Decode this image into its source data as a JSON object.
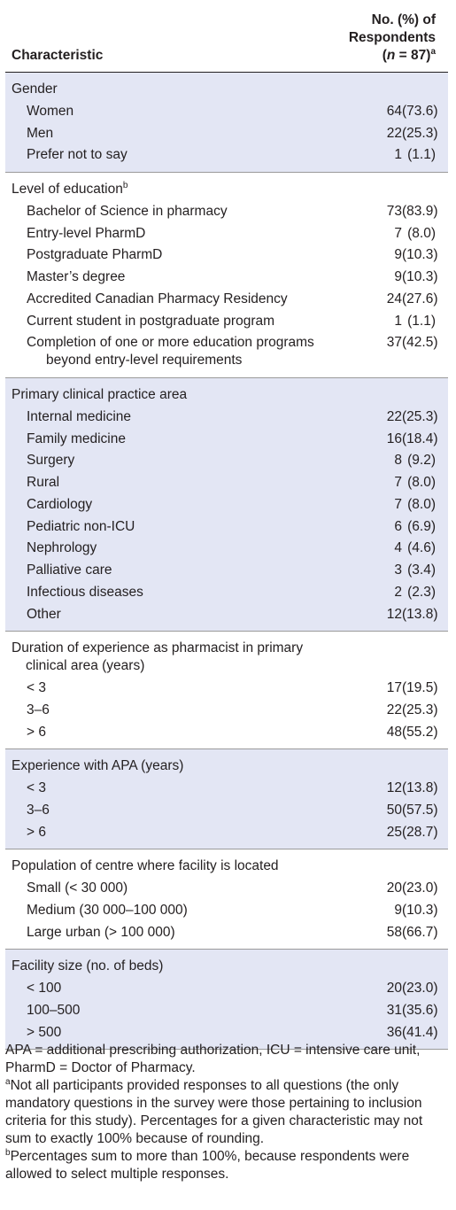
{
  "header": {
    "characteristic_label": "Characteristic",
    "col_line1": "No. (%) of",
    "col_line2": "Respondents",
    "col_n_italic": "n",
    "col_n_rest": " = 87)",
    "col_open": "(",
    "col_sup": "a"
  },
  "sections": [
    {
      "title": "Gender",
      "title_sup": "",
      "rows": [
        {
          "label": "Women",
          "n": "64",
          "pct": "(73.6)"
        },
        {
          "label": "Men",
          "n": "22",
          "pct": "(25.3)"
        },
        {
          "label": "Prefer not to say",
          "n": "1",
          "pct": "(1.1)"
        }
      ]
    },
    {
      "title": "Level of education",
      "title_sup": "b",
      "rows": [
        {
          "label": "Bachelor of Science in pharmacy",
          "n": "73",
          "pct": "(83.9)"
        },
        {
          "label": "Entry-level PharmD",
          "n": "7",
          "pct": "(8.0)"
        },
        {
          "label": "Postgraduate PharmD",
          "n": "9",
          "pct": "(10.3)"
        },
        {
          "label": "Master’s degree",
          "n": "9",
          "pct": "(10.3)"
        },
        {
          "label": "Accredited Canadian Pharmacy Residency",
          "n": "24",
          "pct": "(27.6)"
        },
        {
          "label": "Current student in postgraduate program",
          "n": "1",
          "pct": "(1.1)"
        },
        {
          "label": "Completion of one or more education programs",
          "label2": "beyond entry-level requirements",
          "n": "37",
          "pct": "(42.5)"
        }
      ]
    },
    {
      "title": "Primary clinical practice area",
      "title_sup": "",
      "rows": [
        {
          "label": "Internal medicine",
          "n": "22",
          "pct": "(25.3)"
        },
        {
          "label": "Family medicine",
          "n": "16",
          "pct": "(18.4)"
        },
        {
          "label": "Surgery",
          "n": "8",
          "pct": "(9.2)"
        },
        {
          "label": "Rural",
          "n": "7",
          "pct": "(8.0)"
        },
        {
          "label": "Cardiology",
          "n": "7",
          "pct": "(8.0)"
        },
        {
          "label": "Pediatric non-ICU",
          "n": "6",
          "pct": "(6.9)"
        },
        {
          "label": "Nephrology",
          "n": "4",
          "pct": "(4.6)"
        },
        {
          "label": "Palliative care",
          "n": "3",
          "pct": "(3.4)"
        },
        {
          "label": "Infectious diseases",
          "n": "2",
          "pct": "(2.3)"
        },
        {
          "label": "Other",
          "n": "12",
          "pct": "(13.8)"
        }
      ]
    },
    {
      "title": "Duration of experience as pharmacist in primary",
      "title2": "clinical area (years)",
      "title_sup": "",
      "rows": [
        {
          "label": "< 3",
          "n": "17",
          "pct": "(19.5)"
        },
        {
          "label": "3–6",
          "n": "22",
          "pct": "(25.3)"
        },
        {
          "label": "> 6",
          "n": "48",
          "pct": "(55.2)"
        }
      ]
    },
    {
      "title": "Experience with APA (years)",
      "title_sup": "",
      "rows": [
        {
          "label": "< 3",
          "n": "12",
          "pct": "(13.8)"
        },
        {
          "label": "3–6",
          "n": "50",
          "pct": "(57.5)"
        },
        {
          "label": "> 6",
          "n": "25",
          "pct": "(28.7)"
        }
      ]
    },
    {
      "title": "Population of centre where facility is located",
      "title_sup": "",
      "rows": [
        {
          "label": "Small (< 30 000)",
          "n": "20",
          "pct": "(23.0)"
        },
        {
          "label": "Medium (30 000–100 000)",
          "n": "9",
          "pct": "(10.3)"
        },
        {
          "label": "Large urban (> 100 000)",
          "n": "58",
          "pct": "(66.7)"
        }
      ]
    },
    {
      "title": "Facility size (no. of beds)",
      "title_sup": "",
      "rows": [
        {
          "label": "< 100",
          "n": "20",
          "pct": "(23.0)"
        },
        {
          "label": "100–500",
          "n": "31",
          "pct": "(35.6)"
        },
        {
          "label": "> 500",
          "n": "36",
          "pct": "(41.4)"
        }
      ]
    }
  ],
  "footnotes": {
    "abbreviations": "APA = additional prescribing authorization, ICU = intensive care unit, PharmD = Doctor of Pharmacy.",
    "note_a_mark": "a",
    "note_a": "Not all participants provided responses to all questions (the only mandatory questions in the survey were those pertaining to inclusion criteria for this study). Percentages for a given characteristic may not sum to exactly 100% because of rounding.",
    "note_b_mark": "b",
    "note_b": "Percentages sum to more than 100%, because respondents were allowed to select multiple responses."
  }
}
